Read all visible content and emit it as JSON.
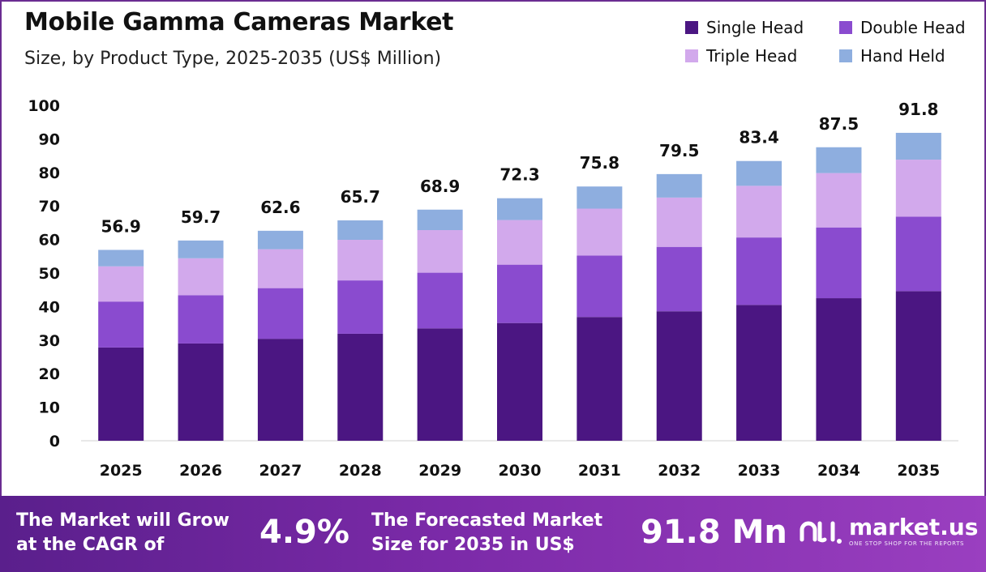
{
  "colors": {
    "single_head": "#4b1682",
    "double_head": "#8a4bcf",
    "triple_head": "#d2a9ec",
    "hand_held": "#8eaedf",
    "footer_start": "#5a1f8c",
    "footer_end": "#9a3fc0"
  },
  "chart_data": {
    "type": "bar",
    "stacked": true,
    "title": "Mobile Gamma Cameras Market",
    "subtitle": "Size, by Product Type, 2025-2035 (US$ Million)",
    "xlabel": "",
    "ylabel": "",
    "ylim": [
      0,
      100
    ],
    "yticks": [
      0,
      10,
      20,
      30,
      40,
      50,
      60,
      70,
      80,
      90,
      100
    ],
    "grid": false,
    "legend_position": "top-right",
    "categories": [
      "2025",
      "2026",
      "2027",
      "2028",
      "2029",
      "2030",
      "2031",
      "2032",
      "2033",
      "2034",
      "2035"
    ],
    "series": [
      {
        "name": "Single Head",
        "color_key": "single_head",
        "values": [
          27.8,
          29.0,
          30.4,
          31.9,
          33.5,
          35.1,
          36.9,
          38.6,
          40.5,
          42.5,
          44.6
        ]
      },
      {
        "name": "Double Head",
        "color_key": "double_head",
        "values": [
          13.7,
          14.4,
          15.1,
          15.9,
          16.6,
          17.4,
          18.3,
          19.2,
          20.1,
          21.1,
          22.2
        ]
      },
      {
        "name": "Triple Head",
        "color_key": "triple_head",
        "values": [
          10.5,
          11.0,
          11.6,
          12.1,
          12.7,
          13.3,
          14.0,
          14.7,
          15.4,
          16.2,
          17.0
        ]
      },
      {
        "name": "Hand Held",
        "color_key": "hand_held",
        "values": [
          4.9,
          5.3,
          5.5,
          5.8,
          6.1,
          6.5,
          6.6,
          7.0,
          7.4,
          7.7,
          8.0
        ]
      }
    ],
    "totals": [
      "56.9",
      "59.7",
      "62.6",
      "65.7",
      "68.9",
      "72.3",
      "75.8",
      "79.5",
      "83.4",
      "87.5",
      "91.8"
    ]
  },
  "footer": {
    "cagr_label_line1": "The Market will Grow",
    "cagr_label_line2": "at the CAGR of",
    "cagr_value": "4.9%",
    "forecast_label_line1": "The Forecasted Market",
    "forecast_label_line2": "Size for 2035 in US$",
    "forecast_value": "91.8 Mn",
    "brand_name": "market.us",
    "brand_tagline": "ONE STOP SHOP FOR THE REPORTS",
    "brand_icon": "market-us-logo-icon"
  }
}
